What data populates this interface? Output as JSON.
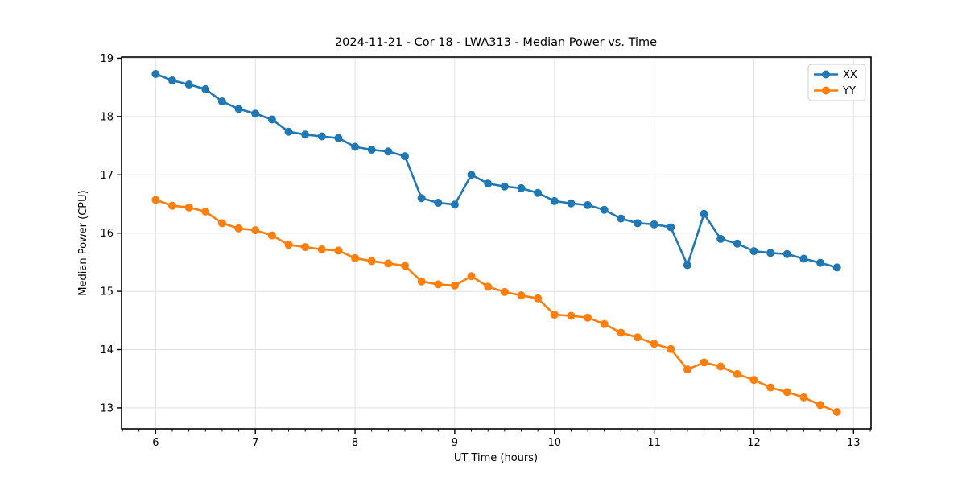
{
  "figure": {
    "background": "#ffffff"
  },
  "chart_data": {
    "type": "line",
    "title": "2024-11-21 - Cor 18 - LWA313 - Median Power vs. Time",
    "xlabel": "UT Time (hours)",
    "ylabel": "Median Power (CPU)",
    "xlim": [
      5.658,
      13.175
    ],
    "ylim": [
      12.64,
      19.02
    ],
    "xticks": [
      6,
      7,
      8,
      9,
      10,
      11,
      12,
      13
    ],
    "yticks": [
      13,
      14,
      15,
      16,
      17,
      18,
      19
    ],
    "minor_xtick_step": 0.16667,
    "grid": true,
    "legend_position": "upper right",
    "time_step_minutes": 10,
    "x": [
      6.0,
      6.1667,
      6.3333,
      6.5,
      6.6667,
      6.8333,
      7.0,
      7.1667,
      7.3333,
      7.5,
      7.6667,
      7.8333,
      8.0,
      8.1667,
      8.3333,
      8.5,
      8.6667,
      8.8333,
      9.0,
      9.1667,
      9.3333,
      9.5,
      9.6667,
      9.8333,
      10.0,
      10.1667,
      10.3333,
      10.5,
      10.6667,
      10.8333,
      11.0,
      11.1667,
      11.3333,
      11.5,
      11.6667,
      11.8333,
      12.0,
      12.1667,
      12.3333,
      12.5,
      12.6667,
      12.8333
    ],
    "series": [
      {
        "name": "XX",
        "color": "#1f77b4",
        "values": [
          18.73,
          18.62,
          18.55,
          18.47,
          18.26,
          18.13,
          18.05,
          17.95,
          17.74,
          17.69,
          17.66,
          17.63,
          17.48,
          17.43,
          17.4,
          17.32,
          16.6,
          16.52,
          16.49,
          17.0,
          16.85,
          16.8,
          16.77,
          16.69,
          16.55,
          16.51,
          16.48,
          16.4,
          16.25,
          16.17,
          16.15,
          16.1,
          15.45,
          16.33,
          15.9,
          15.82,
          15.69,
          15.66,
          15.64,
          15.56,
          15.49,
          15.41
        ]
      },
      {
        "name": "YY",
        "color": "#ff7f0e",
        "values": [
          16.57,
          16.47,
          16.44,
          16.37,
          16.17,
          16.08,
          16.05,
          15.96,
          15.8,
          15.76,
          15.72,
          15.7,
          15.57,
          15.52,
          15.48,
          15.44,
          15.17,
          15.12,
          15.1,
          15.26,
          15.08,
          14.99,
          14.93,
          14.88,
          14.6,
          14.58,
          14.55,
          14.44,
          14.29,
          14.21,
          14.1,
          14.01,
          13.66,
          13.78,
          13.71,
          13.58,
          13.48,
          13.35,
          13.27,
          13.18,
          13.05,
          12.93
        ]
      }
    ],
    "colors": {
      "grid": "#e0e0e0",
      "spine": "#000000",
      "tick_text": "#000000",
      "legend_border": "#cccccc",
      "legend_background": "#ffffff"
    }
  }
}
